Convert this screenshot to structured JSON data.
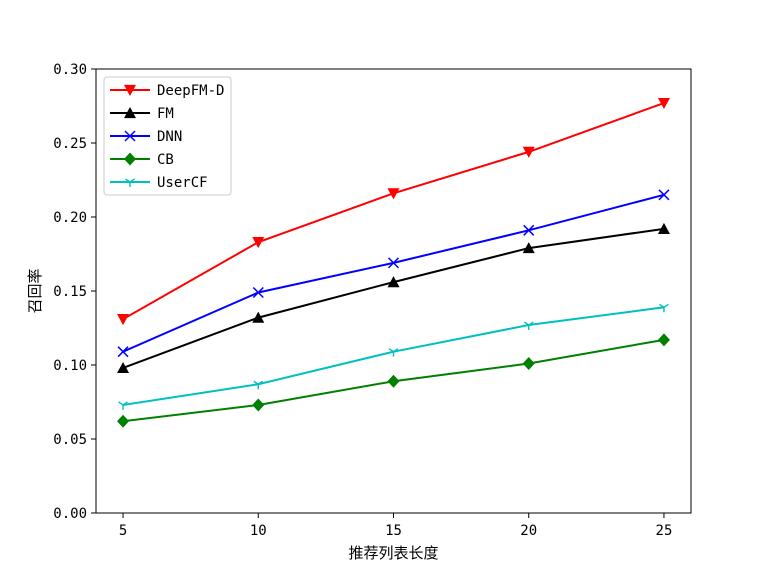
{
  "chart_data": {
    "type": "line",
    "title": "",
    "xlabel": "推荐列表长度",
    "ylabel": "召回率",
    "x": [
      5,
      10,
      15,
      20,
      25
    ],
    "xlim": [
      4,
      26
    ],
    "ylim": [
      0.0,
      0.3
    ],
    "yticks": [
      0.0,
      0.05,
      0.1,
      0.15,
      0.2,
      0.25,
      0.3
    ],
    "ytick_labels": [
      "0.00",
      "0.05",
      "0.10",
      "0.15",
      "0.20",
      "0.25",
      "0.30"
    ],
    "xticks": [
      5,
      10,
      15,
      20,
      25
    ],
    "xtick_labels": [
      "5",
      "10",
      "15",
      "20",
      "25"
    ],
    "grid": false,
    "legend_position": "top-left",
    "series": [
      {
        "name": "DeepFM-D",
        "color": "#ff0000",
        "marker": "triangle-down",
        "values": [
          0.131,
          0.183,
          0.216,
          0.244,
          0.277
        ]
      },
      {
        "name": "FM",
        "color": "#000000",
        "marker": "triangle-up",
        "values": [
          0.098,
          0.132,
          0.156,
          0.179,
          0.192
        ]
      },
      {
        "name": "DNN",
        "color": "#0000ff",
        "marker": "x",
        "values": [
          0.109,
          0.149,
          0.169,
          0.191,
          0.215
        ]
      },
      {
        "name": "CB",
        "color": "#008000",
        "marker": "diamond",
        "values": [
          0.062,
          0.073,
          0.089,
          0.101,
          0.117
        ]
      },
      {
        "name": "UserCF",
        "color": "#00bfbf",
        "marker": "tri-down",
        "values": [
          0.073,
          0.087,
          0.109,
          0.127,
          0.139
        ]
      }
    ]
  }
}
